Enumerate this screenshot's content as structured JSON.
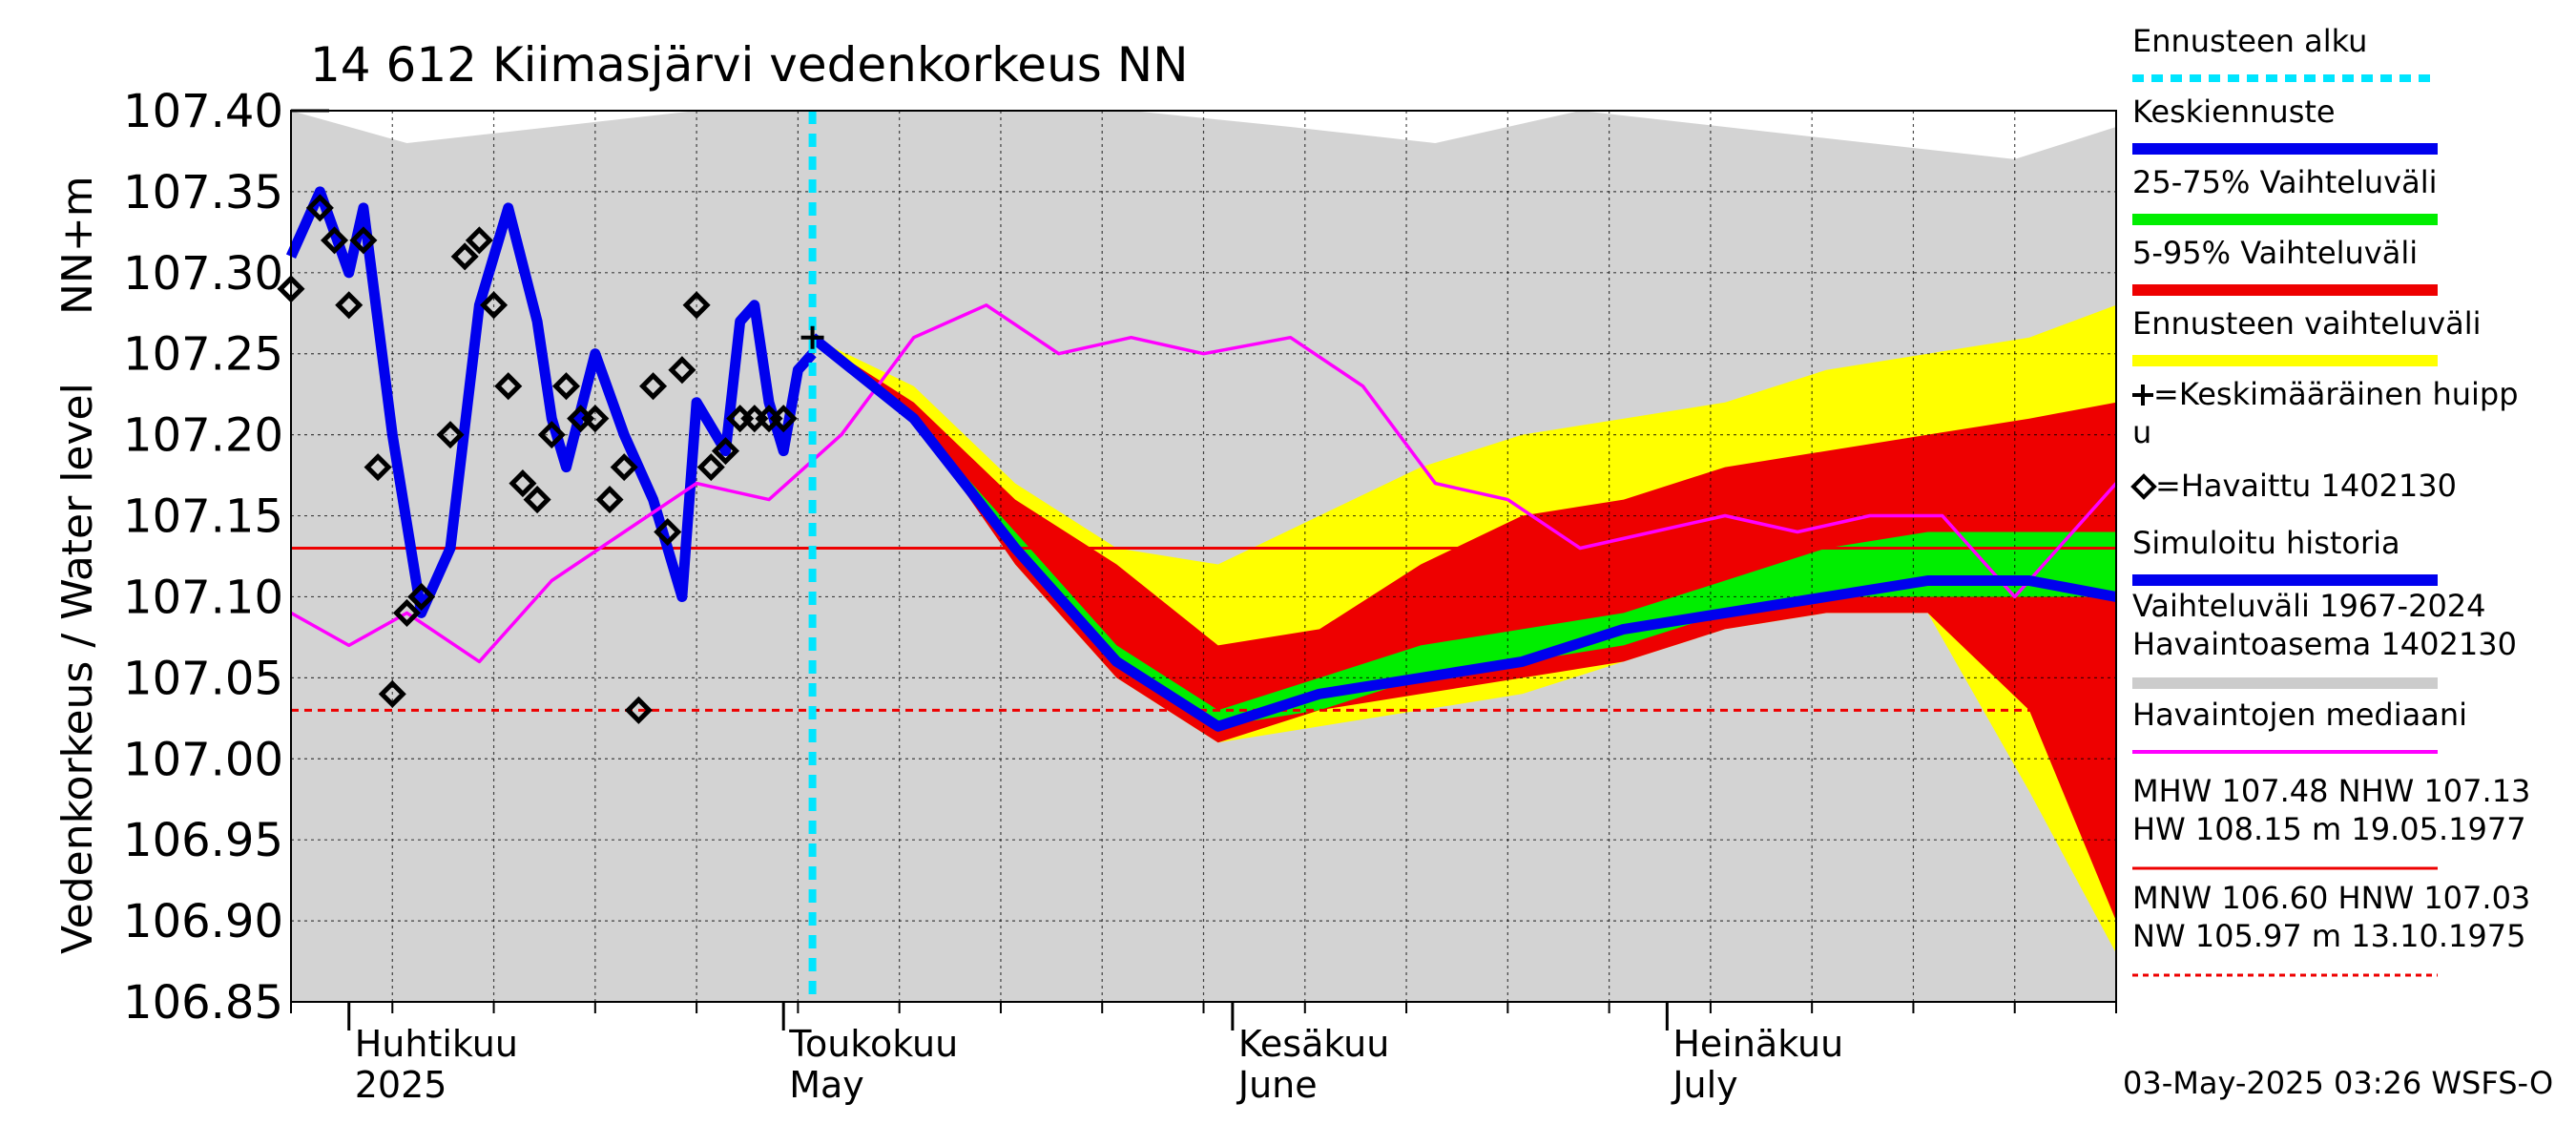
{
  "chart_data": {
    "type": "line",
    "title": "14 612 Kiimasjärvi vedenkorkeus NN",
    "ylabel": "Vedenkorkeus / Water level",
    "ylabel_unit": "NN+m",
    "ylim": [
      106.85,
      107.4
    ],
    "yticks": [
      "107.40",
      "107.35",
      "107.30",
      "107.25",
      "107.20",
      "107.15",
      "107.10",
      "107.05",
      "107.00",
      "106.95",
      "106.90",
      "106.85"
    ],
    "x_start": "2025-03-28",
    "x_end": "2025-08-01",
    "month_labels": [
      {
        "date": "2025-04-01",
        "fi": "Huhtikuu",
        "en": "2025"
      },
      {
        "date": "2025-05-01",
        "fi": "Toukokuu",
        "en": "May"
      },
      {
        "date": "2025-06-01",
        "fi": "Kesäkuu",
        "en": "June"
      },
      {
        "date": "2025-07-01",
        "fi": "Heinäkuu",
        "en": "July"
      }
    ],
    "forecast_start": "2025-05-03",
    "reference_lines": [
      {
        "name": "NHW",
        "value": 107.13,
        "style": "solid",
        "color": "#ee0000"
      },
      {
        "name": "HNW",
        "value": 107.03,
        "style": "dashed",
        "color": "#ee0000"
      }
    ],
    "historical_range": {
      "x": [
        "2025-03-28",
        "2025-04-05",
        "2025-04-15",
        "2025-04-25",
        "2025-05-03",
        "2025-05-15",
        "2025-05-25",
        "2025-06-05",
        "2025-06-15",
        "2025-06-25",
        "2025-07-05",
        "2025-07-15",
        "2025-07-25",
        "2025-08-01"
      ],
      "upper": [
        107.4,
        107.38,
        107.39,
        107.4,
        107.4,
        107.4,
        107.4,
        107.39,
        107.38,
        107.4,
        107.39,
        107.38,
        107.37,
        107.39
      ],
      "lower": [
        106.85,
        106.85,
        106.85,
        106.85,
        106.85,
        106.85,
        106.85,
        106.85,
        106.85,
        106.85,
        106.85,
        106.85,
        106.85,
        106.85
      ]
    },
    "forecast_bands": {
      "x": [
        "2025-05-03",
        "2025-05-10",
        "2025-05-17",
        "2025-05-24",
        "2025-05-31",
        "2025-06-07",
        "2025-06-14",
        "2025-06-21",
        "2025-06-28",
        "2025-07-05",
        "2025-07-12",
        "2025-07-19",
        "2025-07-26",
        "2025-08-01"
      ],
      "ens_upper": [
        107.26,
        107.23,
        107.17,
        107.13,
        107.12,
        107.15,
        107.18,
        107.2,
        107.21,
        107.22,
        107.24,
        107.25,
        107.26,
        107.28
      ],
      "ens_lower": [
        107.26,
        107.22,
        107.12,
        107.05,
        107.01,
        107.02,
        107.03,
        107.04,
        107.06,
        107.08,
        107.09,
        107.09,
        106.98,
        106.88
      ],
      "p95": [
        107.26,
        107.22,
        107.16,
        107.12,
        107.07,
        107.08,
        107.12,
        107.15,
        107.16,
        107.18,
        107.19,
        107.2,
        107.21,
        107.22
      ],
      "p5": [
        107.26,
        107.21,
        107.12,
        107.05,
        107.01,
        107.03,
        107.04,
        107.05,
        107.06,
        107.08,
        107.09,
        107.09,
        107.03,
        106.9
      ],
      "p75": [
        107.26,
        107.21,
        107.14,
        107.07,
        107.03,
        107.05,
        107.07,
        107.08,
        107.09,
        107.11,
        107.13,
        107.14,
        107.14,
        107.14
      ],
      "p25": [
        107.26,
        107.21,
        107.13,
        107.06,
        107.02,
        107.03,
        107.05,
        107.06,
        107.07,
        107.09,
        107.1,
        107.1,
        107.1,
        107.1
      ],
      "mean": [
        107.26,
        107.21,
        107.13,
        107.06,
        107.02,
        107.04,
        107.05,
        107.06,
        107.08,
        107.09,
        107.1,
        107.11,
        107.11,
        107.1
      ]
    },
    "series": [
      {
        "name": "Simuloitu historia",
        "color": "#0000ee",
        "x": [
          "2025-03-28",
          "2025-03-30",
          "2025-04-01",
          "2025-04-02",
          "2025-04-04",
          "2025-04-06",
          "2025-04-08",
          "2025-04-10",
          "2025-04-12",
          "2025-04-14",
          "2025-04-15",
          "2025-04-16",
          "2025-04-18",
          "2025-04-20",
          "2025-04-22",
          "2025-04-24",
          "2025-04-25",
          "2025-04-27",
          "2025-04-28",
          "2025-04-29",
          "2025-04-30",
          "2025-05-01",
          "2025-05-02",
          "2025-05-03"
        ],
        "values": [
          107.31,
          107.35,
          107.3,
          107.34,
          107.2,
          107.09,
          107.13,
          107.28,
          107.34,
          107.27,
          107.21,
          107.18,
          107.25,
          107.2,
          107.16,
          107.1,
          107.22,
          107.19,
          107.27,
          107.28,
          107.22,
          107.19,
          107.24,
          107.25
        ]
      },
      {
        "name": "Havaintojen mediaani",
        "color": "#ff00ff",
        "x": [
          "2025-03-28",
          "2025-04-01",
          "2025-04-05",
          "2025-04-10",
          "2025-04-15",
          "2025-04-20",
          "2025-04-25",
          "2025-04-30",
          "2025-05-05",
          "2025-05-10",
          "2025-05-15",
          "2025-05-20",
          "2025-05-25",
          "2025-05-30",
          "2025-06-05",
          "2025-06-10",
          "2025-06-15",
          "2025-06-20",
          "2025-06-25",
          "2025-06-30",
          "2025-07-05",
          "2025-07-10",
          "2025-07-15",
          "2025-07-20",
          "2025-07-25",
          "2025-08-01"
        ],
        "values": [
          107.09,
          107.07,
          107.09,
          107.06,
          107.11,
          107.14,
          107.17,
          107.16,
          107.2,
          107.26,
          107.28,
          107.25,
          107.26,
          107.25,
          107.26,
          107.23,
          107.17,
          107.16,
          107.13,
          107.14,
          107.15,
          107.14,
          107.15,
          107.15,
          107.1,
          107.17
        ]
      },
      {
        "name": "Keskiennuste",
        "color": "#0000ee",
        "x": [
          "2025-05-03",
          "2025-05-10",
          "2025-05-17",
          "2025-05-24",
          "2025-05-31",
          "2025-06-07",
          "2025-06-14",
          "2025-06-21",
          "2025-06-28",
          "2025-07-05",
          "2025-07-12",
          "2025-07-19",
          "2025-07-26",
          "2025-08-01"
        ],
        "values": [
          107.26,
          107.21,
          107.13,
          107.06,
          107.02,
          107.04,
          107.05,
          107.06,
          107.08,
          107.09,
          107.1,
          107.11,
          107.11,
          107.1
        ]
      }
    ],
    "observed": {
      "name": "Havaittu 1402130",
      "x": [
        "2025-03-28",
        "2025-03-30",
        "2025-03-31",
        "2025-04-01",
        "2025-04-02",
        "2025-04-03",
        "2025-04-04",
        "2025-04-05",
        "2025-04-06",
        "2025-04-08",
        "2025-04-09",
        "2025-04-10",
        "2025-04-11",
        "2025-04-12",
        "2025-04-13",
        "2025-04-14",
        "2025-04-15",
        "2025-04-16",
        "2025-04-17",
        "2025-04-18",
        "2025-04-19",
        "2025-04-20",
        "2025-04-21",
        "2025-04-22",
        "2025-04-23",
        "2025-04-24",
        "2025-04-25",
        "2025-04-26",
        "2025-04-27",
        "2025-04-28",
        "2025-04-29",
        "2025-04-30",
        "2025-05-01"
      ],
      "values": [
        107.29,
        107.34,
        107.32,
        107.28,
        107.32,
        107.18,
        107.04,
        107.09,
        107.1,
        107.2,
        107.31,
        107.32,
        107.28,
        107.23,
        107.17,
        107.16,
        107.2,
        107.23,
        107.21,
        107.21,
        107.16,
        107.18,
        107.03,
        107.23,
        107.14,
        107.24,
        107.28,
        107.18,
        107.19,
        107.21,
        107.21,
        107.21,
        107.21
      ]
    },
    "mean_peak": {
      "x": "2025-05-03",
      "value": 107.26
    }
  },
  "legend": [
    {
      "label": "Ennusteen alku",
      "color": "#00e5ff",
      "style": "dashed"
    },
    {
      "label": "Keskiennuste",
      "color": "#0000ee",
      "style": "thick"
    },
    {
      "label": "25-75% Vaihteluväli",
      "color": "#00ee00",
      "style": "thick"
    },
    {
      "label": "5-95% Vaihteluväli",
      "color": "#ee0000",
      "style": "thick"
    },
    {
      "label": "Ennusteen vaihteluväli",
      "color": "#ffff00",
      "style": "thick"
    },
    {
      "label": "=Keskimääräinen huipp",
      "label2": "u",
      "marker": "plus"
    },
    {
      "label": "=Havaittu 1402130",
      "marker": "diamond"
    },
    {
      "label": "Simuloitu historia",
      "color": "#0000ee",
      "style": "thick"
    },
    {
      "label": "Vaihteluväli 1967-2024",
      "label2": " Havaintoasema 1402130",
      "color": "#cccccc",
      "style": "thick"
    },
    {
      "label": "Havaintojen mediaani",
      "color": "#ff00ff",
      "style": "thin"
    },
    {
      "label": "MHW 107.48 NHW 107.13",
      "label2": "HW 108.15 m 19.05.1977",
      "color": "#ee0000",
      "style": "solid-thin"
    },
    {
      "label": "MNW 106.60 HNW 107.03",
      "label2": "NW 105.97 m 13.10.1975",
      "color": "#ee0000",
      "style": "dashed-thin"
    }
  ],
  "footer": "03-May-2025 03:26 WSFS-O"
}
